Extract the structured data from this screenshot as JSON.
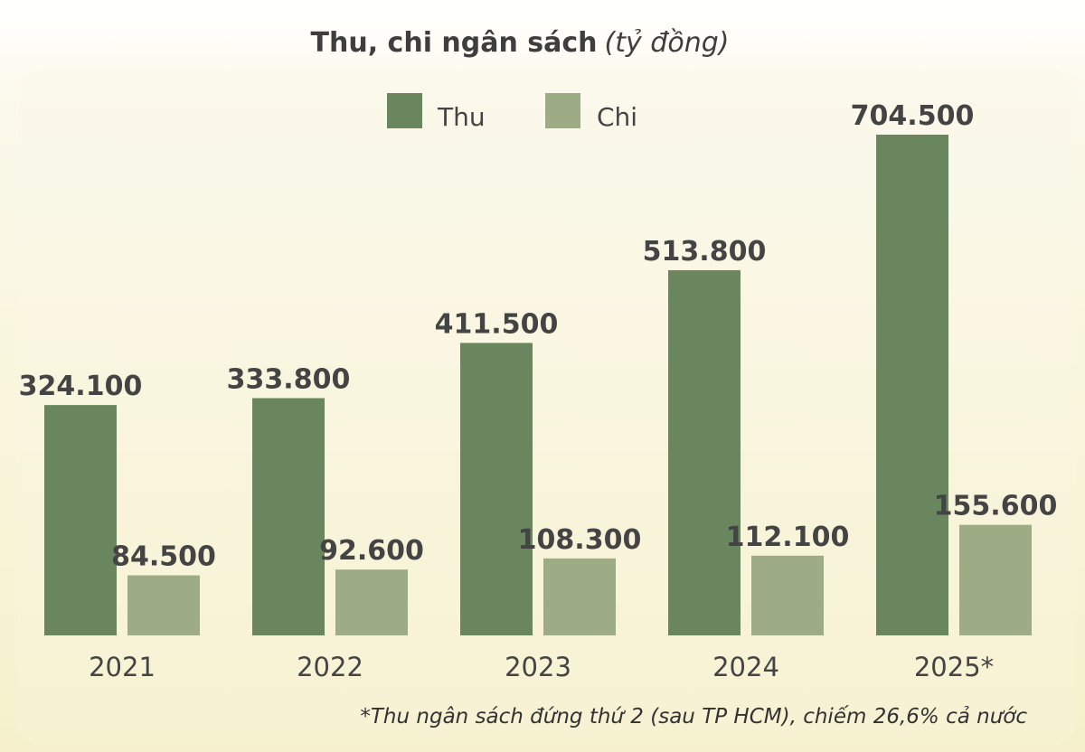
{
  "colors": {
    "thu": "#69865f",
    "chi": "#9eac85",
    "text": "#444444"
  },
  "chart_data": {
    "type": "bar",
    "title": "Thu, chi ngân sách",
    "title_unit": "(tỷ đồng)",
    "categories": [
      "2021",
      "2022",
      "2023",
      "2024",
      "2025*"
    ],
    "series": [
      {
        "name": "Thu",
        "values": [
          324100,
          333800,
          411500,
          513800,
          704500
        ],
        "labels": [
          "324.100",
          "333.800",
          "411.500",
          "513.800",
          "704.500"
        ]
      },
      {
        "name": "Chi",
        "values": [
          84500,
          92600,
          108300,
          112100,
          155600
        ],
        "labels": [
          "84.500",
          "92.600",
          "108.300",
          "112.100",
          "155.600"
        ]
      }
    ],
    "ylim": [
      0,
      750000
    ],
    "grid": false,
    "legend_position": "top-center",
    "footnote": "*Thu ngân sách đứng thứ 2 (sau TP HCM), chiếm 26,6% cả nước"
  }
}
